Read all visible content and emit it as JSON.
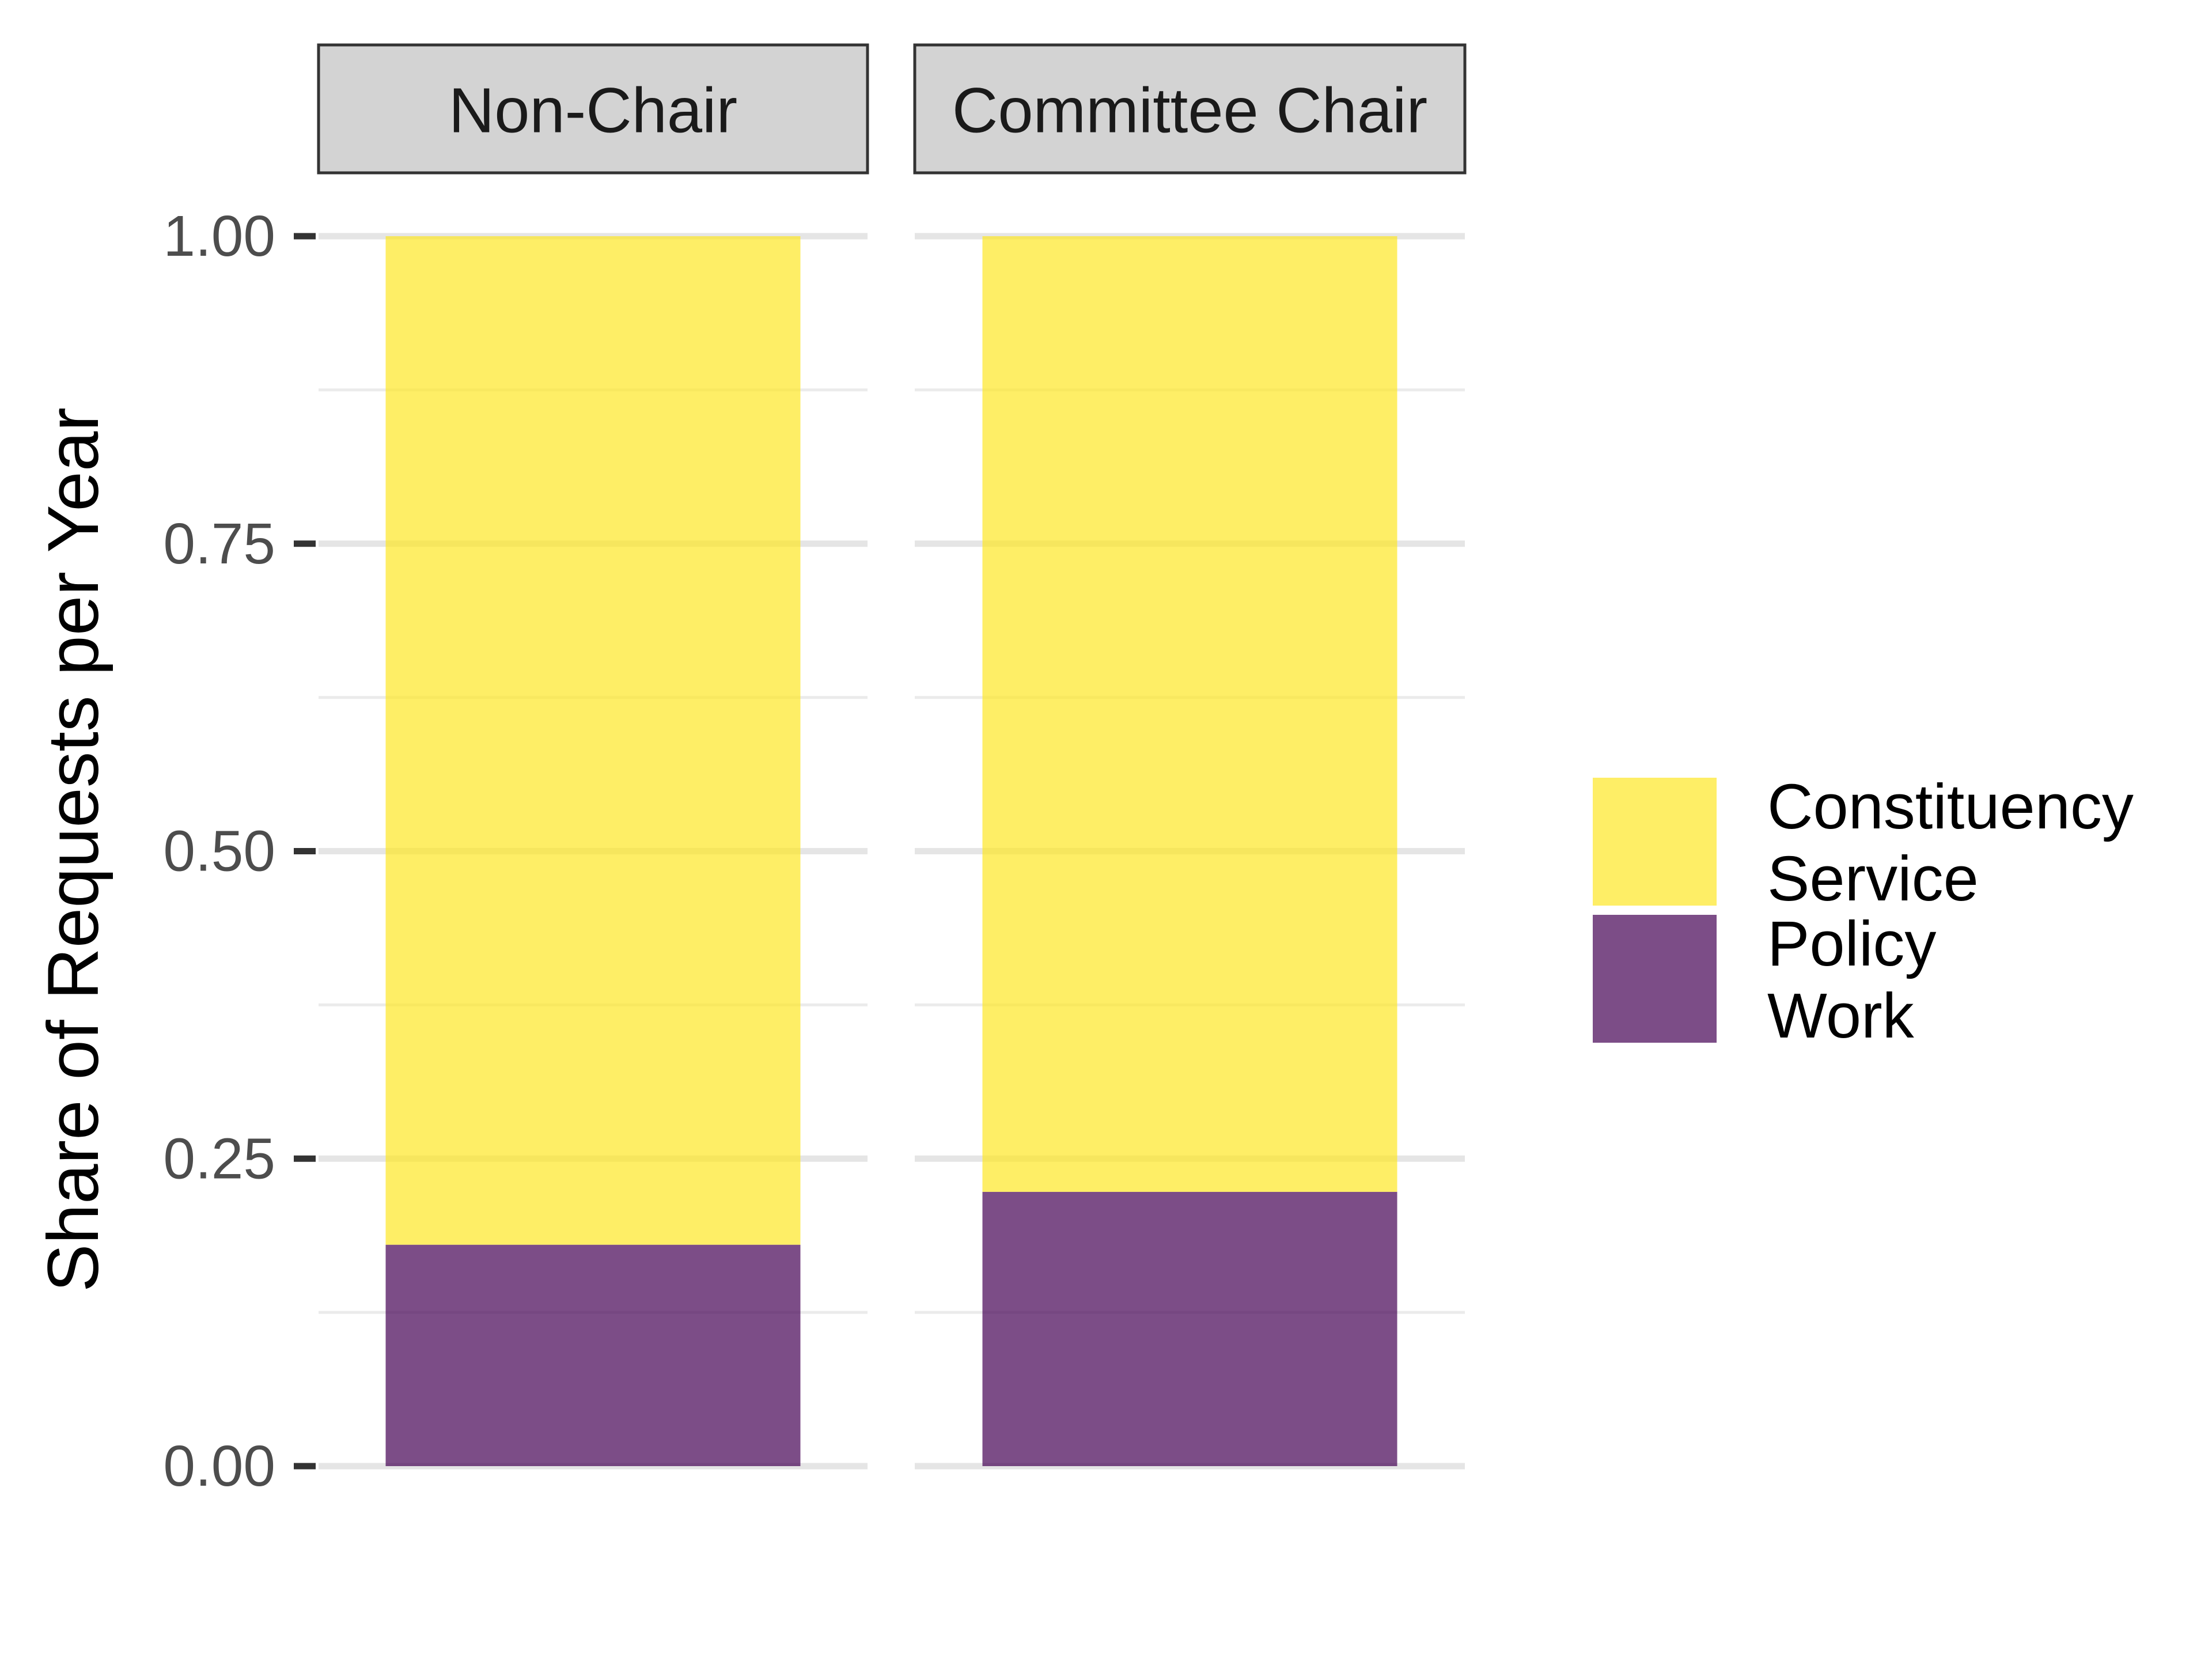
{
  "chart_data": {
    "type": "bar",
    "stacked": true,
    "normalized": true,
    "ylabel": "Share of Requests per Year",
    "ylim": [
      0,
      1
    ],
    "y_ticks": [
      0.0,
      0.25,
      0.5,
      0.75,
      1.0
    ],
    "y_tick_labels": [
      "0.00",
      "0.25",
      "0.50",
      "0.75",
      "1.00"
    ],
    "y_minor_gridlines": [
      0.125,
      0.375,
      0.625,
      0.875
    ],
    "grid": true,
    "facets": [
      "Non-Chair",
      "Committee Chair"
    ],
    "series": [
      {
        "name": "Constituency Service",
        "label_lines": [
          "Constituency",
          "Service"
        ],
        "color": "#FDE725",
        "values": [
          0.82,
          0.777
        ]
      },
      {
        "name": "Policy Work",
        "label_lines": [
          "Policy",
          "Work"
        ],
        "color": "#440154",
        "values": [
          0.18,
          0.223
        ]
      }
    ],
    "bar_opacity": 0.7,
    "legend_position": "right"
  }
}
